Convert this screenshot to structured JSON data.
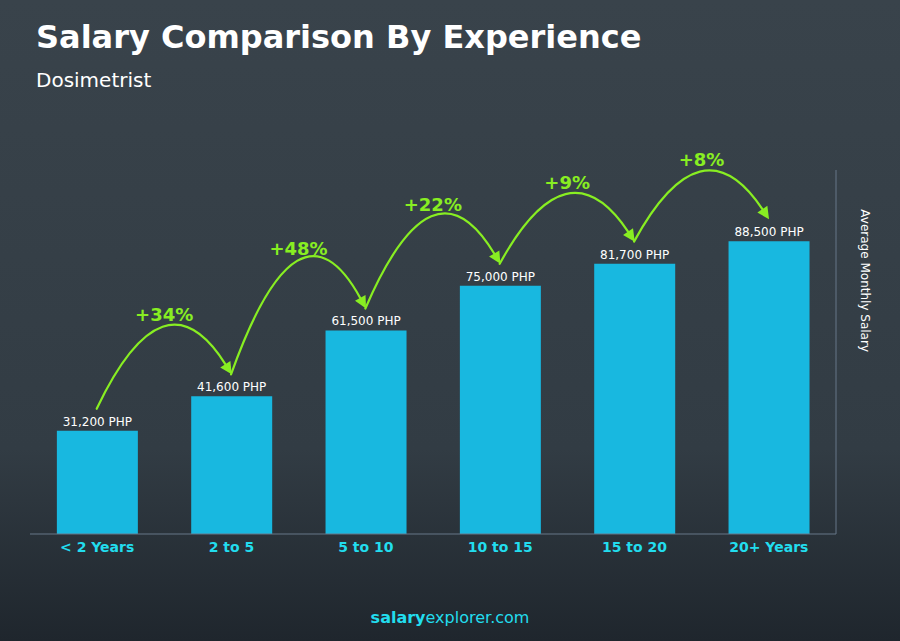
{
  "chart_data": {
    "type": "bar",
    "title": "Salary Comparison By Experience",
    "subtitle": "Dosimetrist",
    "categories": [
      "< 2 Years",
      "2 to 5",
      "5 to 10",
      "10 to 15",
      "15 to 20",
      "20+ Years"
    ],
    "values": [
      31200,
      41600,
      61500,
      75000,
      81700,
      88500
    ],
    "value_labels": [
      "31,200 PHP",
      "41,600 PHP",
      "61,500 PHP",
      "75,000 PHP",
      "81,700 PHP",
      "88,500 PHP"
    ],
    "data_labels": true,
    "annotations": [
      "+34%",
      "+48%",
      "+22%",
      "+9%",
      "+8%"
    ],
    "ylabel": "Average Monthly Salary",
    "footer": [
      "salary",
      "explorer.com"
    ],
    "color": "#18b8e0",
    "ylim": [
      0,
      110000
    ],
    "tick_labels": "x",
    "grid": false
  }
}
